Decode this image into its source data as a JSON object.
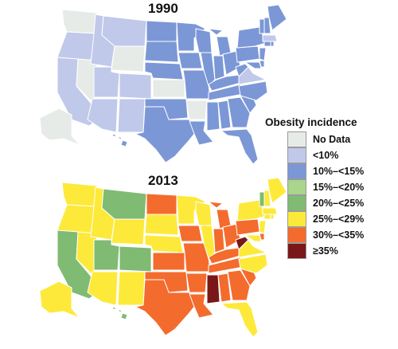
{
  "maps": [
    {
      "title": "1990",
      "states": {
        "WA": "no_data",
        "OR": "lt10",
        "CA": "lt10",
        "NV": "no_data",
        "ID": "lt10",
        "MT": "lt10",
        "WY": "no_data",
        "UT": "lt10",
        "CO": "lt10",
        "AZ": "lt10",
        "NM": "lt10",
        "ND": "10_15",
        "SD": "10_15",
        "NE": "10_15",
        "KS": "no_data",
        "OK": "10_15",
        "TX": "10_15",
        "MN": "10_15",
        "IA": "10_15",
        "MO": "10_15",
        "AR": "no_data",
        "LA": "10_15",
        "WI": "10_15",
        "IL": "10_15",
        "MI": "10_15",
        "IN": "10_15",
        "OH": "10_15",
        "KY": "10_15",
        "TN": "10_15",
        "MS": "10_15",
        "AL": "10_15",
        "GA": "10_15",
        "FL": "10_15",
        "SC": "10_15",
        "NC": "10_15",
        "VA": "lt10",
        "WV": "10_15",
        "MD": "10_15",
        "PA": "10_15",
        "NY": "10_15",
        "NJ": "10_15",
        "DE": "10_15",
        "CT": "10_15",
        "RI": "10_15",
        "MA": "lt10",
        "VT": "10_15",
        "NH": "10_15",
        "ME": "10_15",
        "AK": "no_data",
        "HI": "10_15"
      }
    },
    {
      "title": "2013",
      "states": {
        "WA": "25_29",
        "OR": "25_29",
        "CA": "20_25",
        "NV": "25_29",
        "ID": "25_29",
        "MT": "20_25",
        "WY": "25_29",
        "UT": "20_25",
        "CO": "20_25",
        "AZ": "25_29",
        "NM": "25_29",
        "ND": "30_35",
        "SD": "25_29",
        "NE": "25_29",
        "KS": "30_35",
        "OK": "30_35",
        "TX": "30_35",
        "MN": "25_29",
        "IA": "30_35",
        "MO": "30_35",
        "AR": "30_35",
        "LA": "30_35",
        "WI": "25_29",
        "IL": "25_29",
        "MI": "30_35",
        "IN": "30_35",
        "OH": "30_35",
        "KY": "30_35",
        "TN": "30_35",
        "MS": "ge35",
        "AL": "30_35",
        "GA": "30_35",
        "FL": "25_29",
        "SC": "30_35",
        "NC": "25_29",
        "VA": "25_29",
        "WV": "ge35",
        "MD": "25_29",
        "PA": "30_35",
        "NY": "25_29",
        "NJ": "25_29",
        "DE": "30_35",
        "CT": "25_29",
        "RI": "25_29",
        "MA": "25_29",
        "VT": "20_25",
        "NH": "25_29",
        "ME": "25_29",
        "AK": "25_29",
        "HI": "20_25"
      }
    }
  ],
  "legend": {
    "title": "Obesity incidence",
    "items": [
      {
        "key": "no_data",
        "label": "No Data",
        "color": "#e7ebe8"
      },
      {
        "key": "lt10",
        "label": "<10%",
        "color": "#c0c9ea"
      },
      {
        "key": "10_15",
        "label": "10%–<15%",
        "color": "#7b97d6"
      },
      {
        "key": "15_20",
        "label": "15%–<20%",
        "color": "#a9d58c"
      },
      {
        "key": "20_25",
        "label": "20%–<25%",
        "color": "#7fbb72"
      },
      {
        "key": "25_29",
        "label": "25%–<29%",
        "color": "#fde93a"
      },
      {
        "key": "30_35",
        "label": "30%–<35%",
        "color": "#f46b2e"
      },
      {
        "key": "ge35",
        "label": "≥35%",
        "color": "#7a1718"
      }
    ]
  }
}
